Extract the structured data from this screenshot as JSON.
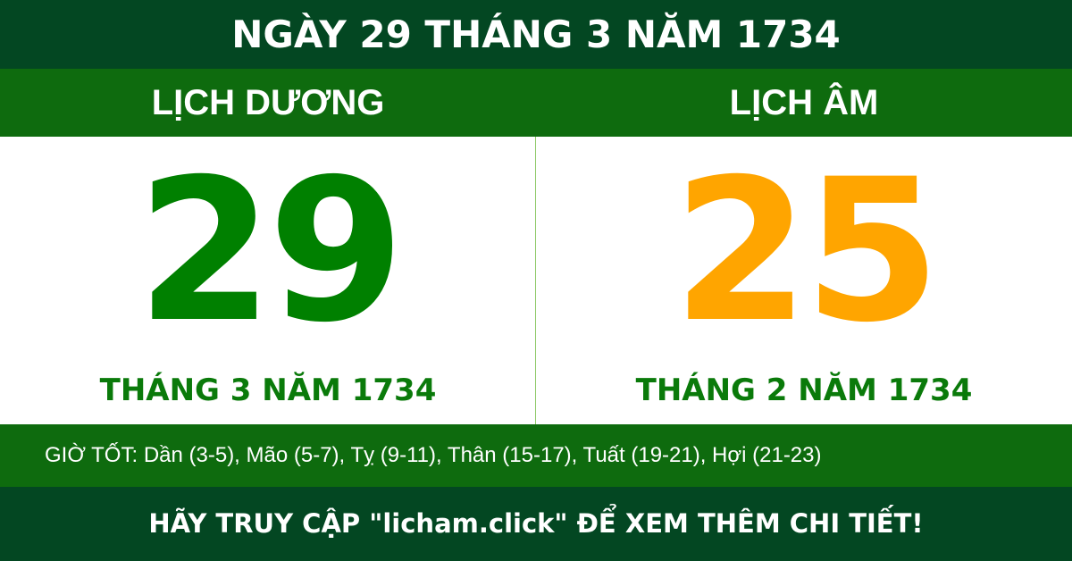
{
  "title": "NGÀY 29 THÁNG 3 NĂM 1734",
  "solar": {
    "label": "LỊCH DƯƠNG",
    "day": "29",
    "month_year": "THÁNG 3 NĂM 1734",
    "color": "#008000"
  },
  "lunar": {
    "label": "LỊCH ÂM",
    "day": "25",
    "month_year": "THÁNG 2 NĂM 1734",
    "color": "#ffa500"
  },
  "good_hours": "GIỜ TỐT: Dần (3-5), Mão (5-7), Tỵ (9-11), Thân (15-17), Tuất (19-21), Hợi (21-23)",
  "footer": "HÃY TRUY CẬP \"licham.click\" ĐỂ XEM THÊM CHI TIẾT!"
}
